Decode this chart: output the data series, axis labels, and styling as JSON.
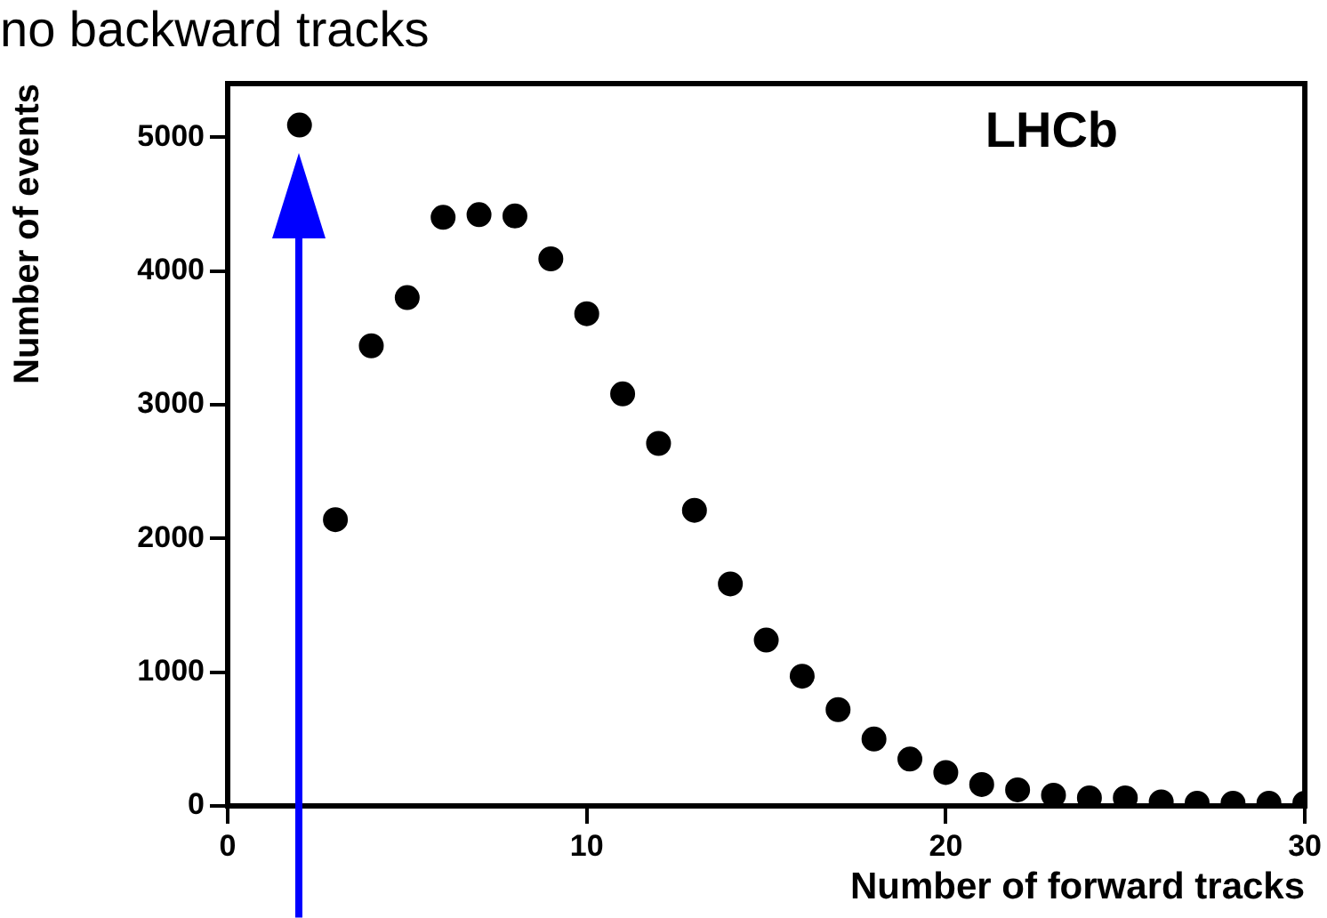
{
  "chart_data": {
    "type": "scatter",
    "xlabel": "Number of forward tracks",
    "ylabel": "Number of events",
    "x": [
      2,
      3,
      4,
      5,
      6,
      7,
      8,
      9,
      10,
      11,
      12,
      13,
      14,
      15,
      16,
      17,
      18,
      19,
      20,
      21,
      22,
      23,
      24,
      25,
      26,
      27,
      28,
      29,
      30
    ],
    "series": [
      {
        "color": "#000000",
        "values": [
          5090,
          2140,
          3440,
          3800,
          4400,
          4420,
          4410,
          4090,
          3680,
          3080,
          2710,
          2210,
          1660,
          1240,
          970,
          720,
          500,
          350,
          250,
          160,
          120,
          80,
          60,
          60,
          30,
          20,
          20,
          20,
          20
        ]
      }
    ],
    "xlim": [
      0,
      30
    ],
    "xticks": [
      0,
      10,
      20,
      30
    ],
    "ylim": [
      0,
      5400
    ],
    "yticks": [
      0,
      1000,
      2000,
      3000,
      4000,
      5000
    ],
    "annotations": [
      {
        "text": "no backward tracks",
        "x": 2,
        "y": 5090
      },
      "LHCb"
    ],
    "marker": "circle",
    "grid": false,
    "legend": false
  }
}
